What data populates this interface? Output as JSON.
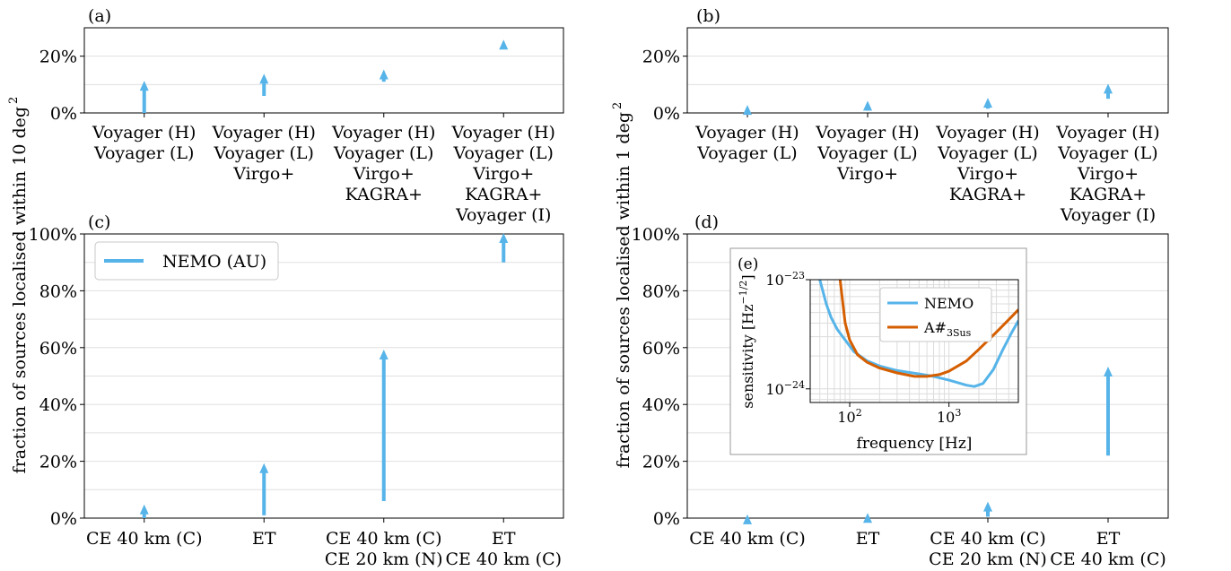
{
  "ylabels": {
    "left": "fraction of sources localised within 10 deg",
    "right": "fraction of sources localised within 1 deg",
    "exponent": "2"
  },
  "chart_data": [
    {
      "id": "a",
      "type": "arrow-range",
      "panel_label": "(a)",
      "categories": [
        [
          "Voyager (H)",
          "Voyager (L)"
        ],
        [
          "Voyager (H)",
          "Voyager (L)",
          "Virgo+"
        ],
        [
          "Voyager (H)",
          "Voyager (L)",
          "Virgo+",
          "KAGRA+"
        ],
        [
          "Voyager (H)",
          "Voyager (L)",
          "Virgo+",
          "KAGRA+",
          "Voyager (I)"
        ]
      ],
      "series": [
        {
          "name": "NEMO (AU)",
          "from": [
            0,
            6,
            11,
            24
          ],
          "to": [
            11,
            13.5,
            15,
            25.5
          ]
        }
      ],
      "ylim": [
        0,
        30
      ],
      "yticks": [
        0,
        20
      ],
      "yticklabels": [
        "0%",
        "20%"
      ],
      "color": "#56B4E9"
    },
    {
      "id": "b",
      "type": "arrow-range",
      "panel_label": "(b)",
      "categories": [
        [
          "Voyager (H)",
          "Voyager (L)"
        ],
        [
          "Voyager (H)",
          "Voyager (L)",
          "Virgo+"
        ],
        [
          "Voyager (H)",
          "Voyager (L)",
          "Virgo+",
          "KAGRA+"
        ],
        [
          "Voyager (H)",
          "Voyager (L)",
          "Virgo+",
          "KAGRA+",
          "Voyager (I)"
        ]
      ],
      "series": [
        {
          "name": "NEMO (AU)",
          "from": [
            0.3,
            0.8,
            1.5,
            5
          ],
          "to": [
            2.5,
            4,
            5,
            10
          ]
        }
      ],
      "ylim": [
        0,
        30
      ],
      "yticks": [
        0,
        20
      ],
      "yticklabels": [
        "0%",
        "20%"
      ],
      "color": "#56B4E9"
    },
    {
      "id": "c",
      "type": "arrow-range",
      "panel_label": "(c)",
      "categories": [
        [
          "CE 40 km (C)"
        ],
        [
          "ET"
        ],
        [
          "CE 40 km (C)",
          "CE 20 km (N)"
        ],
        [
          "ET",
          "CE 40 km (C)"
        ]
      ],
      "series": [
        {
          "name": "NEMO (AU)",
          "from": [
            0,
            1,
            6,
            90
          ],
          "to": [
            4.5,
            19,
            59,
            100
          ]
        }
      ],
      "ylim": [
        0,
        100
      ],
      "yticks": [
        0,
        20,
        40,
        60,
        80,
        100
      ],
      "yticklabels": [
        "0%",
        "20%",
        "40%",
        "60%",
        "80%",
        "100%"
      ],
      "legend": {
        "label": "NEMO (AU)",
        "position": "upper left"
      },
      "color": "#56B4E9"
    },
    {
      "id": "d",
      "type": "arrow-range",
      "panel_label": "(d)",
      "categories": [
        [
          "CE 40 km (C)"
        ],
        [
          "ET"
        ],
        [
          "CE 40 km (C)",
          "CE 20 km (N)"
        ],
        [
          "ET",
          "CE 40 km (C)"
        ]
      ],
      "series": [
        {
          "name": "NEMO (AU)",
          "from": [
            0,
            0,
            0.5,
            22
          ],
          "to": [
            1,
            1.5,
            5.5,
            53
          ]
        }
      ],
      "ylim": [
        0,
        100
      ],
      "yticks": [
        0,
        20,
        40,
        60,
        80,
        100
      ],
      "yticklabels": [
        "0%",
        "20%",
        "40%",
        "60%",
        "80%",
        "100%"
      ],
      "color": "#56B4E9"
    },
    {
      "id": "e",
      "type": "line",
      "panel_label": "(e)",
      "xlabel": "frequency [Hz]",
      "ylabel": "sensitivity [Hz",
      "ylabel_exp": "−1/2",
      "ylabel_close": "]",
      "xscale": "log",
      "yscale": "log",
      "xlim": [
        40,
        5000
      ],
      "ylim": [
        7.5e-25,
        1e-23
      ],
      "xticklabels": [
        {
          "base": "10",
          "exp": "2",
          "x": 100
        },
        {
          "base": "10",
          "exp": "3",
          "x": 1000
        }
      ],
      "yticklabels": [
        {
          "base": "10",
          "exp": "−23",
          "y": 1e-23
        },
        {
          "base": "10",
          "exp": "−24",
          "y": 1e-24
        }
      ],
      "legend_position": "upper right",
      "series": [
        {
          "name": "NEMO",
          "color": "#56B4E9",
          "x": [
            50,
            58,
            65,
            75,
            90,
            110,
            150,
            200,
            300,
            500,
            700,
            1000,
            1500,
            1800,
            2200,
            2800,
            3500,
            4300,
            5000
          ],
          "y": [
            1e-23,
            6e-24,
            4.5e-24,
            3.5e-24,
            2.8e-24,
            2.2e-24,
            1.8e-24,
            1.62e-24,
            1.47e-24,
            1.37e-24,
            1.3e-24,
            1.2e-24,
            1.08e-24,
            1.05e-24,
            1.12e-24,
            1.5e-24,
            2.3e-24,
            3.3e-24,
            4.2e-24
          ]
        },
        {
          "name": "A#",
          "name_sub": "3Sus",
          "color": "#D55E00",
          "x": [
            80,
            90,
            100,
            120,
            150,
            200,
            300,
            450,
            600,
            800,
            1000,
            1500,
            2000,
            3000,
            4000,
            5000
          ],
          "y": [
            1e-23,
            4e-24,
            2.8e-24,
            2.05e-24,
            1.75e-24,
            1.55e-24,
            1.4e-24,
            1.3e-24,
            1.3e-24,
            1.35e-24,
            1.45e-24,
            1.8e-24,
            2.3e-24,
            3.3e-24,
            4.3e-24,
            5.3e-24
          ]
        }
      ]
    }
  ]
}
